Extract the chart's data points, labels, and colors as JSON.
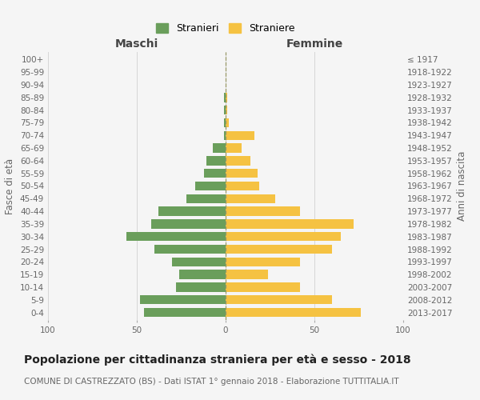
{
  "age_groups": [
    "0-4",
    "5-9",
    "10-14",
    "15-19",
    "20-24",
    "25-29",
    "30-34",
    "35-39",
    "40-44",
    "45-49",
    "50-54",
    "55-59",
    "60-64",
    "65-69",
    "70-74",
    "75-79",
    "80-84",
    "85-89",
    "90-94",
    "95-99",
    "100+"
  ],
  "birth_years": [
    "2013-2017",
    "2008-2012",
    "2003-2007",
    "1998-2002",
    "1993-1997",
    "1988-1992",
    "1983-1987",
    "1978-1982",
    "1973-1977",
    "1968-1972",
    "1963-1967",
    "1958-1962",
    "1953-1957",
    "1948-1952",
    "1943-1947",
    "1938-1942",
    "1933-1937",
    "1928-1932",
    "1923-1927",
    "1918-1922",
    "≤ 1917"
  ],
  "maschi": [
    46,
    48,
    28,
    26,
    30,
    40,
    56,
    42,
    38,
    22,
    17,
    12,
    11,
    7,
    1,
    1,
    1,
    1,
    0,
    0,
    0
  ],
  "femmine": [
    76,
    60,
    42,
    24,
    42,
    60,
    65,
    72,
    42,
    28,
    19,
    18,
    14,
    9,
    16,
    2,
    1,
    1,
    0,
    0,
    0
  ],
  "male_color": "#6a9e5b",
  "female_color": "#f5c242",
  "title": "Popolazione per cittadinanza straniera per età e sesso - 2018",
  "subtitle": "COMUNE DI CASTREZZATO (BS) - Dati ISTAT 1° gennaio 2018 - Elaborazione TUTTITALIA.IT",
  "ylabel_left": "Fasce di età",
  "ylabel_right": "Anni di nascita",
  "xlabel_left": "Maschi",
  "xlabel_right": "Femmine",
  "legend_stranieri": "Stranieri",
  "legend_straniere": "Straniere",
  "xlim": 100,
  "bg_color": "#f5f5f5",
  "grid_color": "#d0d0d0",
  "title_fontsize": 10,
  "subtitle_fontsize": 7.5,
  "label_fontsize": 8.5,
  "tick_fontsize": 7.5
}
